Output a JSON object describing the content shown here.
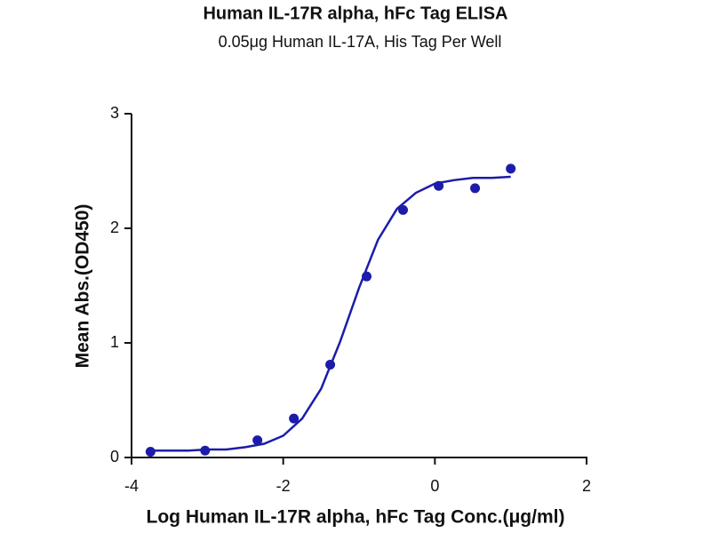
{
  "chart_data": {
    "type": "scatter",
    "title": "Human IL-17R alpha, hFc Tag ELISA",
    "subtitle": "0.05μg Human IL-17A, His Tag Per Well",
    "x_label": "Log Human IL-17R alpha, hFc Tag Conc.(μg/ml)",
    "y_label": "Mean Abs.(OD450)",
    "color": "#1c1caa",
    "x": [
      -3.75,
      -3.03,
      -2.34,
      -1.86,
      -1.38,
      -0.9,
      -0.42,
      0.05,
      0.53,
      1.0
    ],
    "values": [
      0.05,
      0.06,
      0.15,
      0.34,
      0.81,
      1.58,
      2.16,
      2.37,
      2.35,
      2.52
    ],
    "fit": {
      "x": [
        -3.75,
        -3.5,
        -3.25,
        -3,
        -2.75,
        -2.5,
        -2.25,
        -2,
        -1.75,
        -1.5,
        -1.25,
        -1,
        -0.75,
        -0.5,
        -0.25,
        0,
        0.25,
        0.5,
        0.75,
        1
      ],
      "values": [
        0.06,
        0.06,
        0.06,
        0.07,
        0.07,
        0.09,
        0.12,
        0.19,
        0.34,
        0.6,
        1.01,
        1.48,
        1.9,
        2.17,
        2.31,
        2.39,
        2.42,
        2.44,
        2.44,
        2.45
      ]
    },
    "xlim": [
      -4,
      2
    ],
    "xticks": [
      -4,
      -2,
      0,
      2
    ],
    "ylim": [
      0,
      3
    ],
    "yticks": [
      0,
      1,
      2,
      3
    ]
  }
}
